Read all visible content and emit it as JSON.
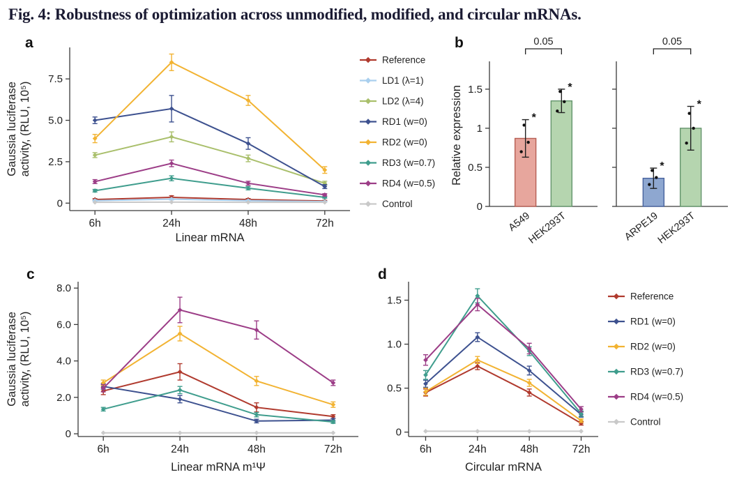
{
  "figure": {
    "title": "Fig. 4: Robustness of optimization across unmodified, modified, and circular mRNAs."
  },
  "chart_data": [
    {
      "panel": "a",
      "type": "line",
      "title": "",
      "xlabel": "Linear mRNA",
      "ylabel": "Gaussia luciferase\nactivity, (RLU, 10⁵)",
      "x": [
        "6h",
        "24h",
        "48h",
        "72h"
      ],
      "yticks": [
        "0",
        "2.5",
        "5.0",
        "7.5"
      ],
      "ylim": [
        -0.45,
        9.4
      ],
      "grid": false,
      "legend_position": "right",
      "series": [
        {
          "name": "Reference",
          "color": "#b03a2e",
          "values": [
            0.22,
            0.35,
            0.22,
            0.13
          ],
          "err": [
            0.05,
            0.1,
            0.06,
            0.04
          ]
        },
        {
          "name": "LD1 (λ=1)",
          "color": "#a9cfee",
          "values": [
            0.15,
            0.24,
            0.15,
            0.09
          ],
          "err": [
            0.04,
            0.05,
            0.04,
            0.03
          ]
        },
        {
          "name": "LD2 (λ=4)",
          "color": "#a9bf6b",
          "values": [
            2.9,
            4.0,
            2.7,
            1.2
          ],
          "err": [
            0.15,
            0.3,
            0.2,
            0.12
          ]
        },
        {
          "name": "RD1 (w=0)",
          "color": "#3d518f",
          "values": [
            5.0,
            5.7,
            3.6,
            1.0
          ],
          "err": [
            0.2,
            0.8,
            0.35,
            0.12
          ]
        },
        {
          "name": "RD2 (w=0)",
          "color": "#f2b332",
          "values": [
            3.9,
            8.5,
            6.2,
            2.0
          ],
          "err": [
            0.25,
            0.5,
            0.3,
            0.2
          ]
        },
        {
          "name": "RD3 (w=0.7)",
          "color": "#3f9d8d",
          "values": [
            0.75,
            1.5,
            0.9,
            0.35
          ],
          "err": [
            0.08,
            0.15,
            0.1,
            0.05
          ]
        },
        {
          "name": "RD4 (w=0.5)",
          "color": "#9c3d87",
          "values": [
            1.3,
            2.4,
            1.2,
            0.5
          ],
          "err": [
            0.12,
            0.2,
            0.12,
            0.07
          ]
        },
        {
          "name": "Control",
          "color": "#c9c9c9",
          "values": [
            0.05,
            0.06,
            0.05,
            0.05
          ],
          "err": [
            0,
            0,
            0,
            0
          ]
        }
      ]
    },
    {
      "panel": "b",
      "type": "bar",
      "title": "",
      "ylabel": "Relative expression",
      "yticks": [
        "0",
        "0.5",
        "1",
        "1.5"
      ],
      "ylim": [
        0,
        1.82
      ],
      "subpanels": [
        {
          "bracket": "0.05",
          "bars": [
            {
              "label": "A549",
              "value": 0.87,
              "err": 0.24,
              "fill": "#e7a69d",
              "stroke": "#b65e53",
              "dots": [
                0.7,
                0.82,
                1.04
              ],
              "star": true
            },
            {
              "label": "HEK293T",
              "value": 1.35,
              "err": 0.15,
              "fill": "#b5d5af",
              "stroke": "#63946c",
              "dots": [
                1.22,
                1.34,
                1.47
              ],
              "star": true
            }
          ]
        },
        {
          "bracket": "0.05",
          "bars": [
            {
              "label": "ARPE19",
              "value": 0.36,
              "err": 0.13,
              "fill": "#8ea7d0",
              "stroke": "#47629d",
              "dots": [
                0.28,
                0.37,
                0.46
              ],
              "star": true
            },
            {
              "label": "HEK293T",
              "value": 1.0,
              "err": 0.28,
              "fill": "#b5d5af",
              "stroke": "#63946c",
              "dots": [
                0.81,
                1.0,
                1.19
              ],
              "star": true
            }
          ]
        }
      ]
    },
    {
      "panel": "c",
      "type": "line",
      "title": "",
      "xlabel": "Linear mRNA m¹Ψ",
      "ylabel": "Gaussia luciferase\nactivity, (RLU, 10⁵)",
      "x": [
        "6h",
        "24h",
        "48h",
        "72h"
      ],
      "yticks": [
        "0",
        "2.0",
        "4.0",
        "6.0",
        "8.0"
      ],
      "ylim": [
        -0.15,
        8.35
      ],
      "grid": false,
      "legend_position": "none",
      "series": [
        {
          "name": "Reference",
          "color": "#b03a2e",
          "values": [
            2.35,
            3.4,
            1.45,
            0.95
          ],
          "err": [
            0.2,
            0.45,
            0.25,
            0.1
          ]
        },
        {
          "name": "RD1 (w=0)",
          "color": "#3d518f",
          "values": [
            2.6,
            1.9,
            0.7,
            0.75
          ],
          "err": [
            0.15,
            0.2,
            0.1,
            0.1
          ]
        },
        {
          "name": "RD2 (w=0)",
          "color": "#f2b332",
          "values": [
            2.8,
            5.5,
            2.9,
            1.6
          ],
          "err": [
            0.15,
            0.4,
            0.25,
            0.15
          ]
        },
        {
          "name": "RD3 (w=0.7)",
          "color": "#3f9d8d",
          "values": [
            1.35,
            2.4,
            1.05,
            0.65
          ],
          "err": [
            0.1,
            0.2,
            0.12,
            0.08
          ]
        },
        {
          "name": "RD4 (w=0.5)",
          "color": "#9c3d87",
          "values": [
            2.5,
            6.8,
            5.7,
            2.8
          ],
          "err": [
            0.2,
            0.7,
            0.5,
            0.15
          ]
        },
        {
          "name": "Control",
          "color": "#c9c9c9",
          "values": [
            0.05,
            0.05,
            0.05,
            0.05
          ],
          "err": [
            0,
            0,
            0,
            0
          ]
        }
      ]
    },
    {
      "panel": "d",
      "type": "line",
      "title": "",
      "xlabel": "Circular mRNA",
      "ylabel": "",
      "x": [
        "6h",
        "24h",
        "48h",
        "72h"
      ],
      "yticks": [
        "0",
        "0.5",
        "1.0",
        "1.5"
      ],
      "ylim": [
        -0.05,
        1.71
      ],
      "grid": false,
      "legend_position": "right",
      "series": [
        {
          "name": "Reference",
          "color": "#b03a2e",
          "values": [
            0.45,
            0.75,
            0.45,
            0.1
          ],
          "err": [
            0.04,
            0.04,
            0.04,
            0.02
          ]
        },
        {
          "name": "RD1 (w=0)",
          "color": "#3d518f",
          "values": [
            0.55,
            1.08,
            0.7,
            0.2
          ],
          "err": [
            0.04,
            0.05,
            0.05,
            0.03
          ]
        },
        {
          "name": "RD2 (w=0)",
          "color": "#f2b332",
          "values": [
            0.46,
            0.82,
            0.56,
            0.13
          ],
          "err": [
            0.04,
            0.04,
            0.04,
            0.02
          ]
        },
        {
          "name": "RD3 (w=0.7)",
          "color": "#3f9d8d",
          "values": [
            0.65,
            1.55,
            0.92,
            0.21
          ],
          "err": [
            0.05,
            0.08,
            0.05,
            0.03
          ]
        },
        {
          "name": "RD4 (w=0.5)",
          "color": "#9c3d87",
          "values": [
            0.82,
            1.45,
            0.95,
            0.26
          ],
          "err": [
            0.06,
            0.07,
            0.06,
            0.03
          ]
        },
        {
          "name": "Control",
          "color": "#c9c9c9",
          "values": [
            0.01,
            0.01,
            0.01,
            0.01
          ],
          "err": [
            0,
            0,
            0,
            0
          ]
        }
      ]
    }
  ]
}
